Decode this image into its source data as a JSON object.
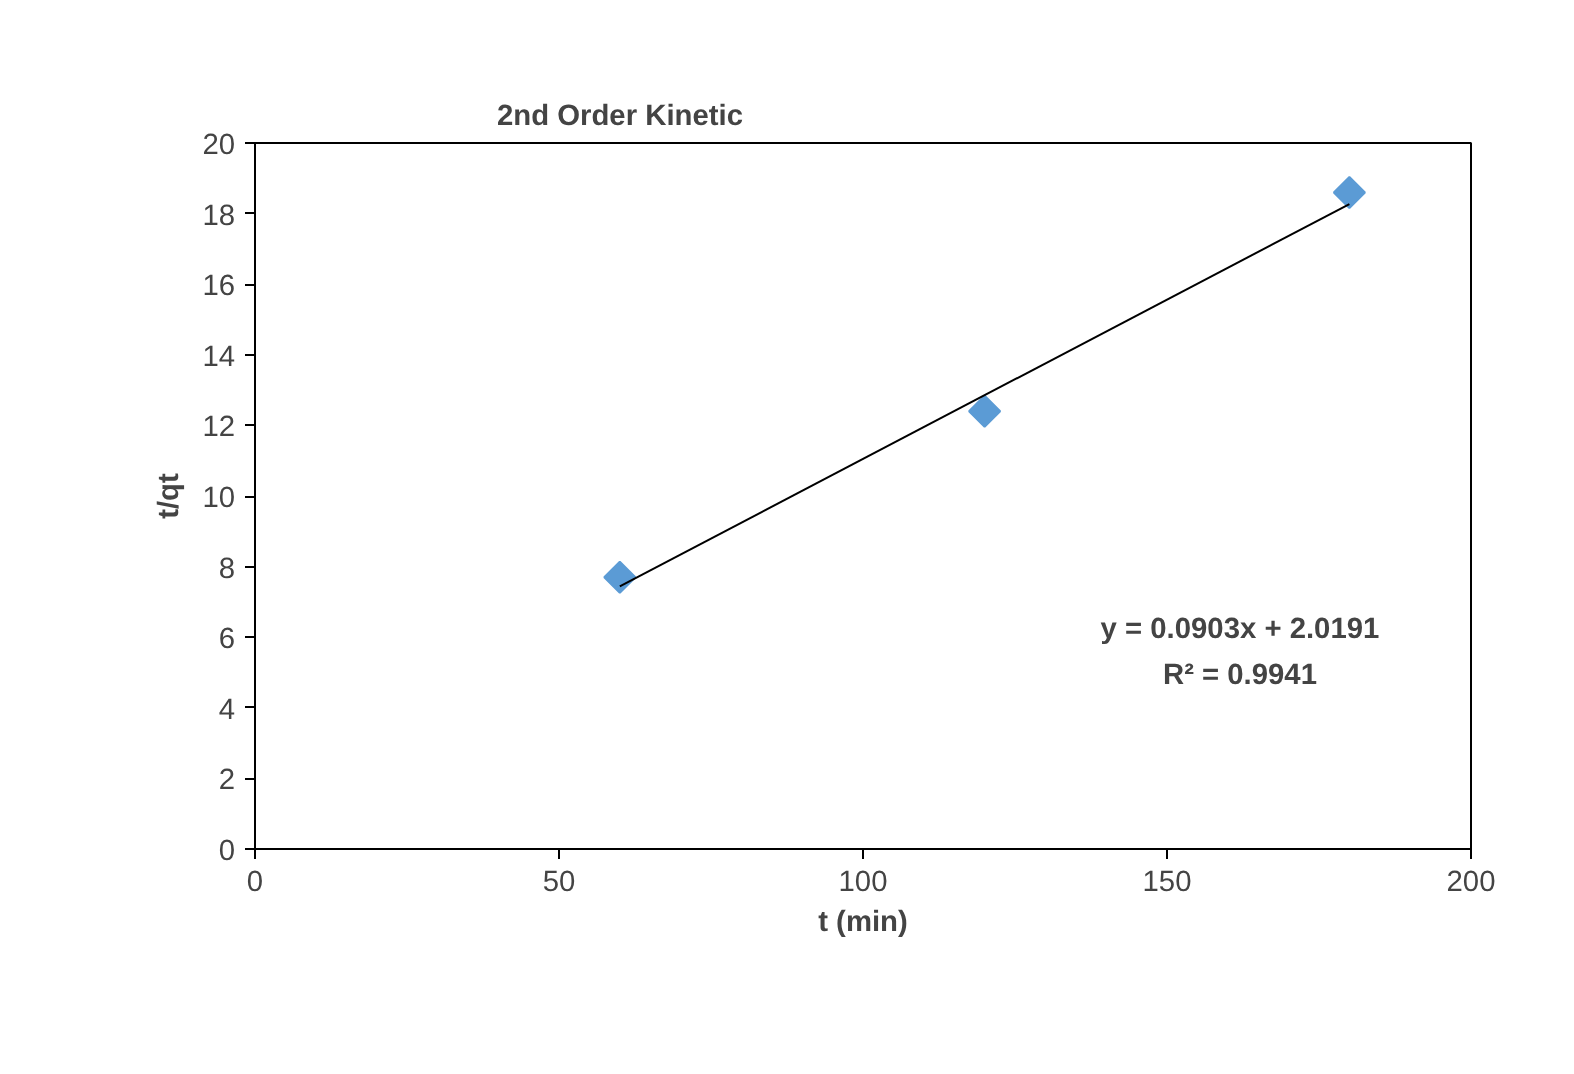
{
  "chart_data": {
    "type": "scatter",
    "title": "2nd Order Kinetic",
    "xlabel": "t (min)",
    "ylabel": "t/qt",
    "x": [
      60,
      120,
      180
    ],
    "series": [
      {
        "color": "#5b9bd5",
        "marker": "diamond",
        "values": [
          7.7,
          12.4,
          18.6
        ]
      },
      {
        "type": "line",
        "color": "#000000",
        "marker": "none",
        "x": [
          60,
          180
        ],
        "values": [
          7.44,
          18.27
        ]
      }
    ],
    "xlim": [
      0,
      200
    ],
    "ylim": [
      0,
      20
    ],
    "xticks": [
      0,
      50,
      100,
      150,
      200
    ],
    "yticks": [
      0,
      2,
      4,
      6,
      8,
      10,
      12,
      14,
      16,
      18,
      20
    ],
    "grid": false,
    "annotations": [
      "y = 0.0903x + 2.0191",
      "R² = 0.9941"
    ]
  }
}
